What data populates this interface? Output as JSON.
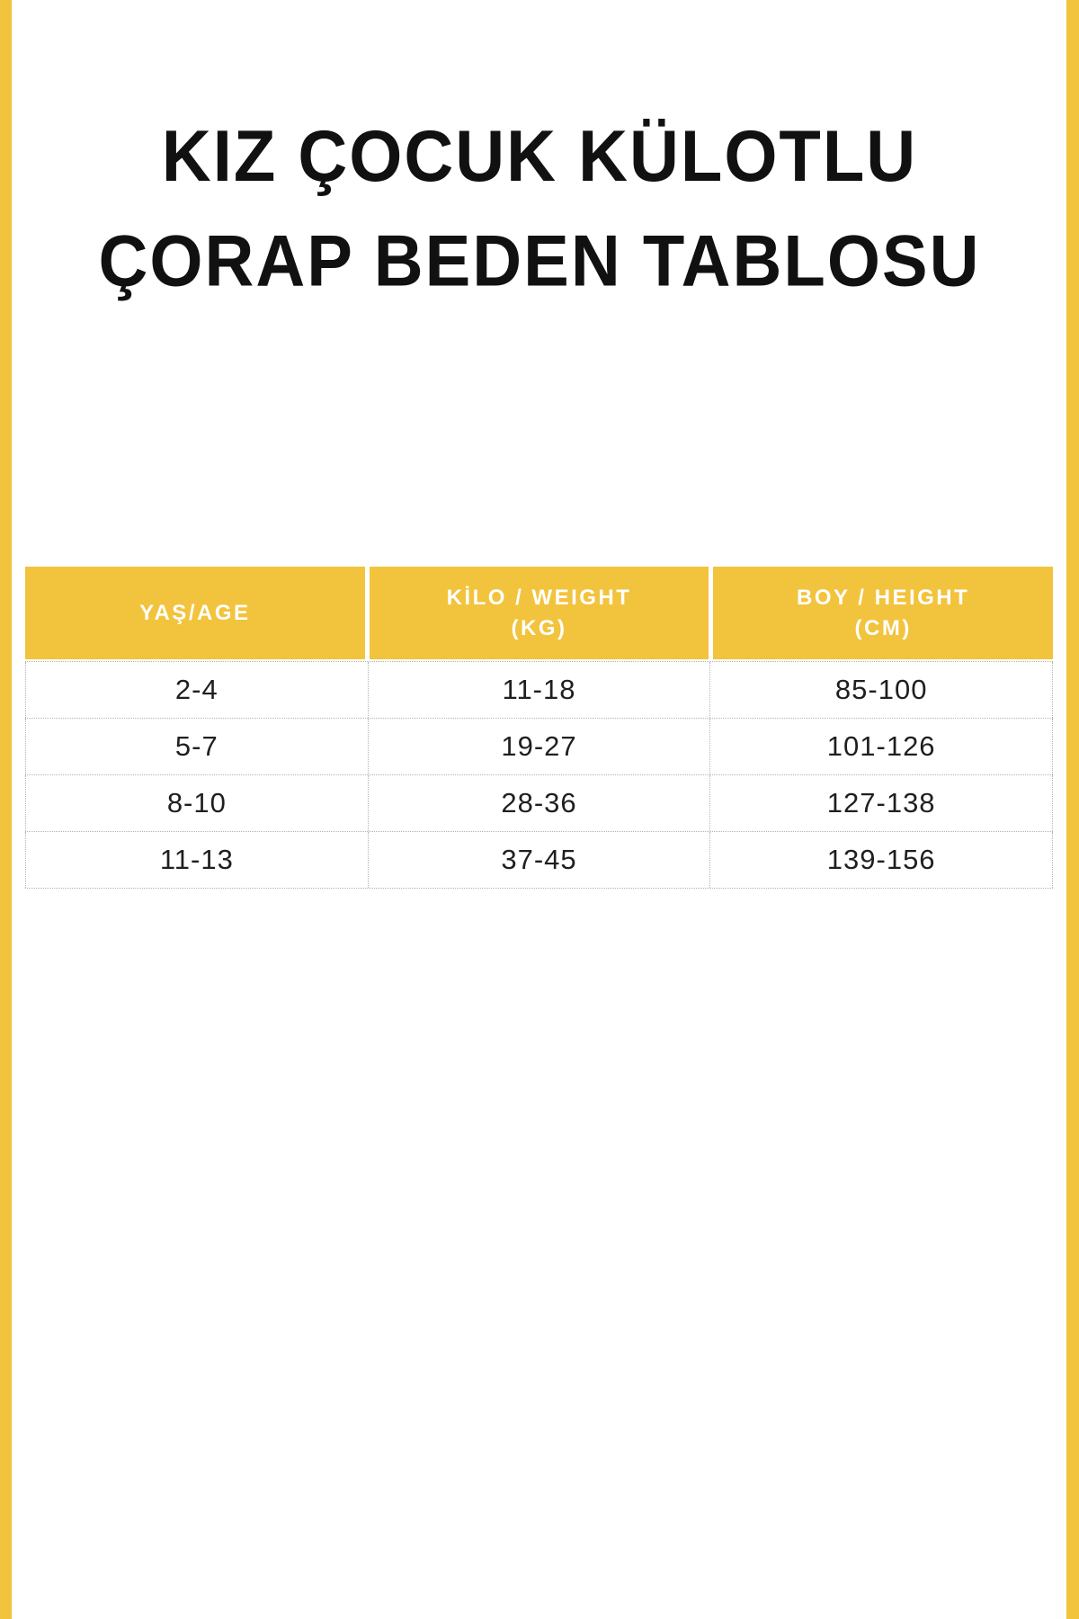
{
  "colors": {
    "accent": "#F2C33C",
    "ink": "#111111",
    "cell-text": "#1f1f1f",
    "grid": "#b3b3b3"
  },
  "title": {
    "line1": "KIZ ÇOCUK KÜLOTLU",
    "line2": "ÇORAP BEDEN TABLOSU"
  },
  "table": {
    "header": [
      {
        "line1": "YAŞ/AGE",
        "line2": ""
      },
      {
        "line1": "KİLO / WEIGHT",
        "line2": "(KG)"
      },
      {
        "line1": "BOY / HEIGHT",
        "line2": "(CM)"
      }
    ]
  },
  "chart_data": {
    "type": "table",
    "title": "KIZ ÇOCUK KÜLOTLU ÇORAP BEDEN TABLOSU",
    "columns": [
      "YAŞ/AGE",
      "KİLO / WEIGHT (KG)",
      "BOY / HEIGHT (CM)"
    ],
    "rows": [
      [
        "2-4",
        "11-18",
        "85-100"
      ],
      [
        "5-7",
        "19-27",
        "101-126"
      ],
      [
        "8-10",
        "28-36",
        "127-138"
      ],
      [
        "11-13",
        "37-45",
        "139-156"
      ]
    ]
  }
}
